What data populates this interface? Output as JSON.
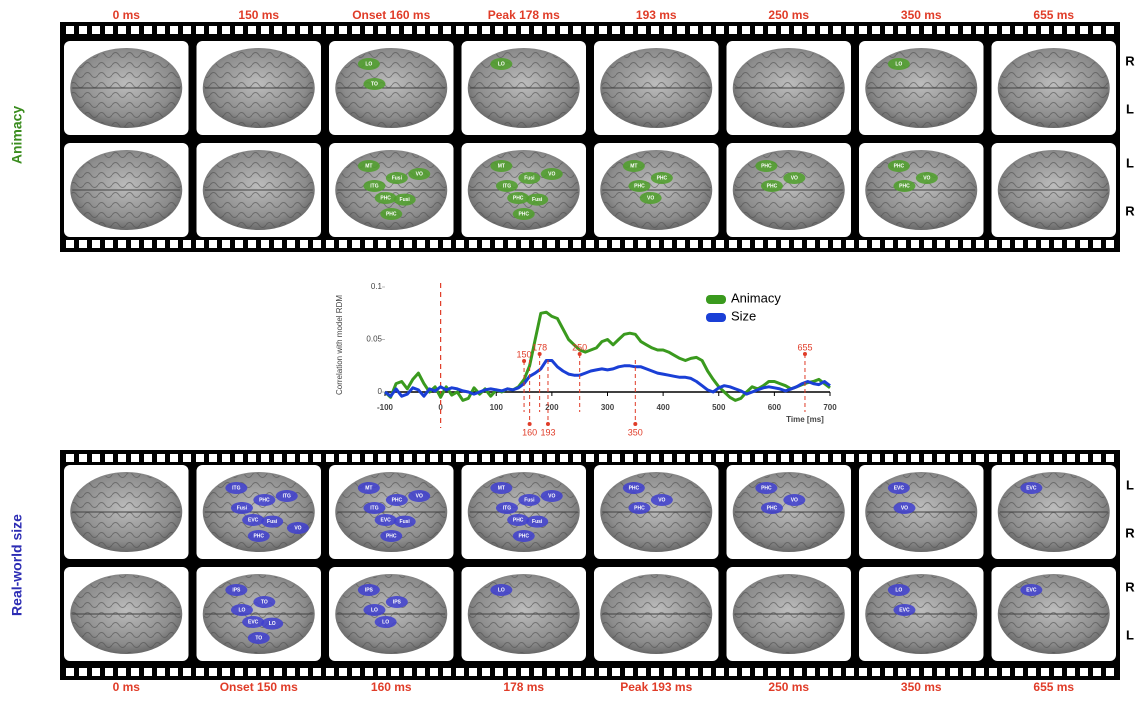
{
  "animacy_panel": {
    "title": "Animacy",
    "color": "#3a8c1e",
    "region_color": "#4fa02a",
    "frame_labels": [
      "0 ms",
      "150 ms",
      "Onset 160 ms",
      "Peak 178 ms",
      "193 ms",
      "250 ms",
      "350 ms",
      "655 ms"
    ],
    "rows": [
      {
        "side_labels": [
          "R",
          "L"
        ],
        "regions": [
          [],
          [],
          [
            "LO",
            "TO"
          ],
          [
            "LO"
          ],
          [],
          [],
          [
            "LO"
          ],
          []
        ]
      },
      {
        "side_labels": [
          "L",
          "R"
        ],
        "regions": [
          [],
          [],
          [
            "MT",
            "ITG",
            "Fusi",
            "PHC",
            "PHC",
            "Fusi",
            "VO"
          ],
          [
            "MT",
            "ITG",
            "Fusi",
            "PHC",
            "PHC",
            "Fusi",
            "VO"
          ],
          [
            "MT",
            "PHC",
            "PHC",
            "VO"
          ],
          [
            "PHC",
            "PHC",
            "VO"
          ],
          [
            "PHC",
            "PHC",
            "VO"
          ],
          []
        ]
      }
    ]
  },
  "size_panel": {
    "title": "Real-world size",
    "color": "#2c2cb4",
    "region_color": "#3f3fd0",
    "frame_labels": [
      "0 ms",
      "Onset 150 ms",
      "160 ms",
      "178 ms",
      "Peak 193 ms",
      "250 ms",
      "350 ms",
      "655 ms"
    ],
    "rows": [
      {
        "side_labels": [
          "L",
          "R"
        ],
        "regions": [
          [],
          [
            "ITG",
            "Fusi",
            "PHC",
            "EVC",
            "PHC",
            "Fusi",
            "ITG",
            "VO"
          ],
          [
            "MT",
            "ITG",
            "PHC",
            "EVC",
            "PHC",
            "Fusi",
            "VO"
          ],
          [
            "MT",
            "ITG",
            "Fusi",
            "PHC",
            "PHC",
            "Fusi",
            "VO"
          ],
          [
            "PHC",
            "PHC",
            "VO"
          ],
          [
            "PHC",
            "PHC",
            "VO"
          ],
          [
            "EVC",
            "VO"
          ],
          [
            "EVC"
          ]
        ]
      },
      {
        "side_labels": [
          "R",
          "L"
        ],
        "regions": [
          [],
          [
            "IPS",
            "LO",
            "TO",
            "EVC",
            "TO",
            "LO"
          ],
          [
            "IPS",
            "LO",
            "IPS",
            "LO"
          ],
          [
            "LO"
          ],
          [],
          [],
          [
            "LO",
            "EVC"
          ],
          [
            "EVC"
          ]
        ]
      }
    ]
  },
  "chart_data": {
    "type": "line",
    "y_label": "Correlation with model RDM",
    "x_label": "Time [ms]",
    "x": [
      -100,
      -90,
      -80,
      -70,
      -60,
      -50,
      -40,
      -30,
      -20,
      -10,
      0,
      10,
      20,
      30,
      40,
      50,
      60,
      70,
      80,
      90,
      100,
      110,
      120,
      130,
      140,
      150,
      160,
      170,
      180,
      190,
      200,
      210,
      220,
      230,
      240,
      250,
      260,
      270,
      280,
      290,
      300,
      310,
      320,
      330,
      340,
      350,
      360,
      370,
      380,
      390,
      400,
      410,
      420,
      430,
      440,
      450,
      460,
      470,
      480,
      490,
      500,
      510,
      520,
      530,
      540,
      550,
      560,
      570,
      580,
      590,
      600,
      610,
      620,
      630,
      640,
      650,
      660,
      670,
      680,
      690,
      700
    ],
    "series": [
      {
        "name": "Animacy",
        "color": "#3a9a1e",
        "values": [
          0,
          -0.005,
          0.008,
          0.01,
          0.003,
          0.012,
          0.018,
          0.008,
          0,
          0.005,
          -0.005,
          0.005,
          -0.003,
          0,
          -0.008,
          -0.006,
          0.004,
          -0.002,
          0.003,
          -0.004,
          0.002,
          0,
          0.003,
          0.002,
          0.005,
          0.012,
          0.025,
          0.05,
          0.075,
          0.076,
          0.072,
          0.07,
          0.06,
          0.05,
          0.045,
          0.04,
          0.038,
          0.04,
          0.042,
          0.048,
          0.05,
          0.045,
          0.05,
          0.055,
          0.056,
          0.055,
          0.048,
          0.045,
          0.042,
          0.04,
          0.04,
          0.038,
          0.035,
          0.032,
          0.03,
          0.032,
          0.033,
          0.03,
          0.02,
          0.012,
          0.005,
          0,
          -0.005,
          -0.008,
          -0.006,
          0,
          0.005,
          0.003,
          0.006,
          0.01,
          0.01,
          0.008,
          0.006,
          0.003,
          0.005,
          0.007,
          0.009,
          0.01,
          0.012,
          0.008,
          0.004
        ]
      },
      {
        "name": "Size",
        "color": "#1a3fd6",
        "values": [
          0,
          -0.004,
          0.003,
          -0.004,
          -0.002,
          0.004,
          0.002,
          -0.004,
          0.003,
          0.001,
          0.005,
          0.002,
          0.004,
          0.003,
          0.001,
          0,
          -0.002,
          0,
          0.002,
          0.003,
          0.002,
          0.001,
          0.003,
          0.002,
          0.004,
          0.008,
          0.015,
          0.018,
          0.022,
          0.03,
          0.03,
          0.024,
          0.02,
          0.017,
          0.016,
          0.016,
          0.018,
          0.02,
          0.021,
          0.022,
          0.021,
          0.022,
          0.024,
          0.025,
          0.025,
          0.024,
          0.024,
          0.022,
          0.02,
          0.018,
          0.017,
          0.016,
          0.015,
          0.014,
          0.014,
          0.013,
          0.01,
          0.006,
          0.002,
          0,
          0.004,
          0.006,
          0.005,
          0.003,
          0.001,
          -0.002,
          0,
          0.002,
          0.004,
          0.005,
          0.004,
          0.003,
          0.001,
          0.003,
          0.005,
          0.008,
          0.01,
          0.008,
          0.007,
          0.01,
          0.006
        ]
      }
    ],
    "xlim": [
      -100,
      700
    ],
    "ylim": [
      -0.01,
      0.1
    ],
    "xticks": [
      -100,
      0,
      100,
      200,
      300,
      400,
      500,
      600,
      700
    ],
    "yticks": [
      0,
      0.05,
      0.1
    ],
    "markers_above": [
      150,
      178,
      250,
      655
    ],
    "markers_below": [
      160,
      193,
      350
    ],
    "marker_color": "#e03c28",
    "legend": "upper right"
  }
}
